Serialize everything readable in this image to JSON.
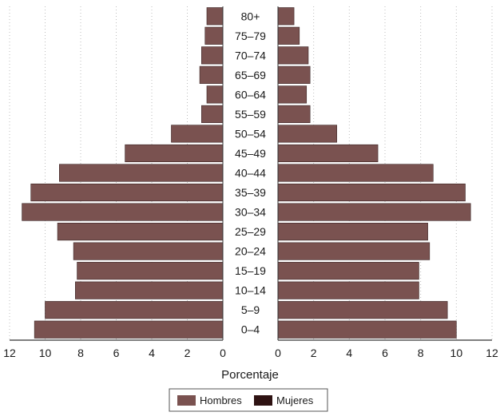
{
  "chart_data": {
    "type": "bar",
    "orientation": "horizontal",
    "layout": "population-pyramid",
    "categories": [
      "80+",
      "75–79",
      "70–74",
      "65–69",
      "60–64",
      "55–59",
      "50–54",
      "45–49",
      "40–44",
      "35–39",
      "30–34",
      "25–29",
      "20–24",
      "15–19",
      "10–14",
      "5–9",
      "0–4"
    ],
    "series": [
      {
        "name": "Hombres",
        "side": "left",
        "color": "#7a5250",
        "values": [
          0.9,
          1.0,
          1.2,
          1.3,
          0.9,
          1.2,
          2.9,
          5.5,
          9.2,
          10.8,
          11.3,
          9.3,
          8.4,
          8.2,
          8.3,
          10.0,
          10.6
        ]
      },
      {
        "name": "Mujeres",
        "side": "right",
        "color": "#2e1212",
        "values": [
          0.9,
          1.2,
          1.7,
          1.8,
          1.6,
          1.8,
          3.3,
          5.6,
          8.7,
          10.5,
          10.8,
          8.4,
          8.5,
          7.9,
          7.9,
          9.5,
          10.0
        ]
      }
    ],
    "bar_color": "#7a5250",
    "xlabel": "Porcentaje",
    "xlim": [
      0,
      12
    ],
    "xticks": [
      12,
      10,
      8,
      6,
      4,
      2,
      0
    ],
    "xticks_right": [
      0,
      2,
      4,
      6,
      8,
      10,
      12
    ],
    "grid": "vertical-dotted",
    "legend_position": "bottom-center"
  }
}
